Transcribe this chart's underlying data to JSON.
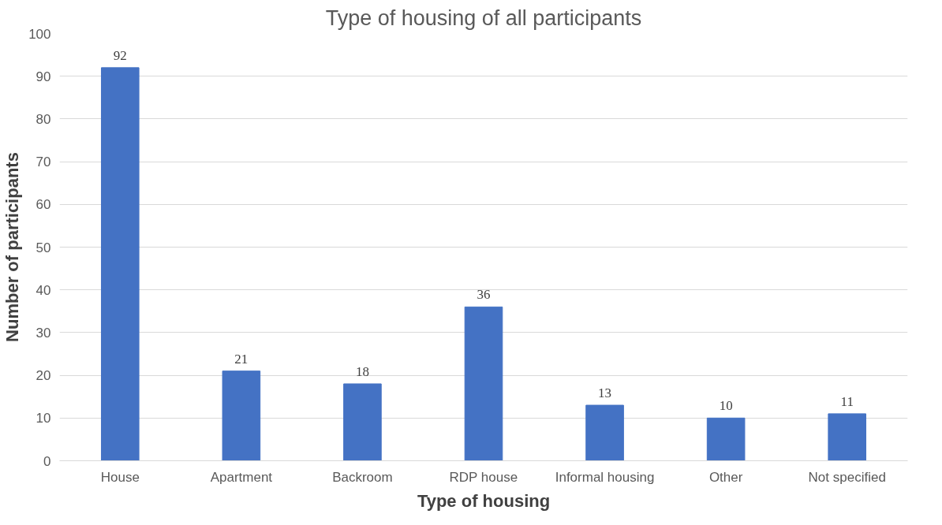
{
  "chart_data": {
    "type": "bar",
    "title": "Type of housing of all participants",
    "xlabel": "Type of housing",
    "ylabel": "Number of participants",
    "categories": [
      "House",
      "Apartment",
      "Backroom",
      "RDP house",
      "Informal housing",
      "Other",
      "Not specified"
    ],
    "values": [
      92,
      21,
      18,
      36,
      13,
      10,
      11
    ],
    "color": "#4472c4",
    "ylim": [
      0,
      100
    ],
    "yticks": [
      0,
      10,
      20,
      30,
      40,
      50,
      60,
      70,
      80,
      90,
      100
    ],
    "grid": "y",
    "data_labels": true
  }
}
